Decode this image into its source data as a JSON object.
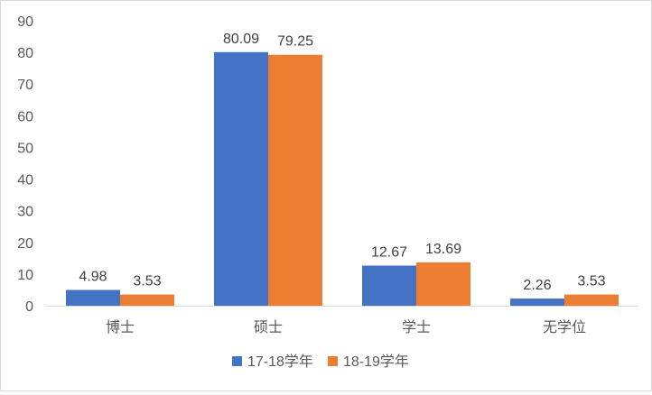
{
  "chart_data": {
    "type": "bar",
    "categories": [
      "博士",
      "硕士",
      "学士",
      "无学位"
    ],
    "series": [
      {
        "name": "17-18学年",
        "values": [
          4.98,
          80.09,
          12.67,
          2.26
        ],
        "color": "#4472c4"
      },
      {
        "name": "18-19学年",
        "values": [
          3.53,
          79.25,
          13.69,
          3.53
        ],
        "color": "#ed7d31"
      }
    ],
    "ylim": [
      0,
      90
    ],
    "yticks": [
      0,
      10,
      20,
      30,
      40,
      50,
      60,
      70,
      80,
      90
    ],
    "data_labels": true,
    "grid": false,
    "legend": "bottom",
    "title": "",
    "xlabel": "",
    "ylabel": ""
  }
}
